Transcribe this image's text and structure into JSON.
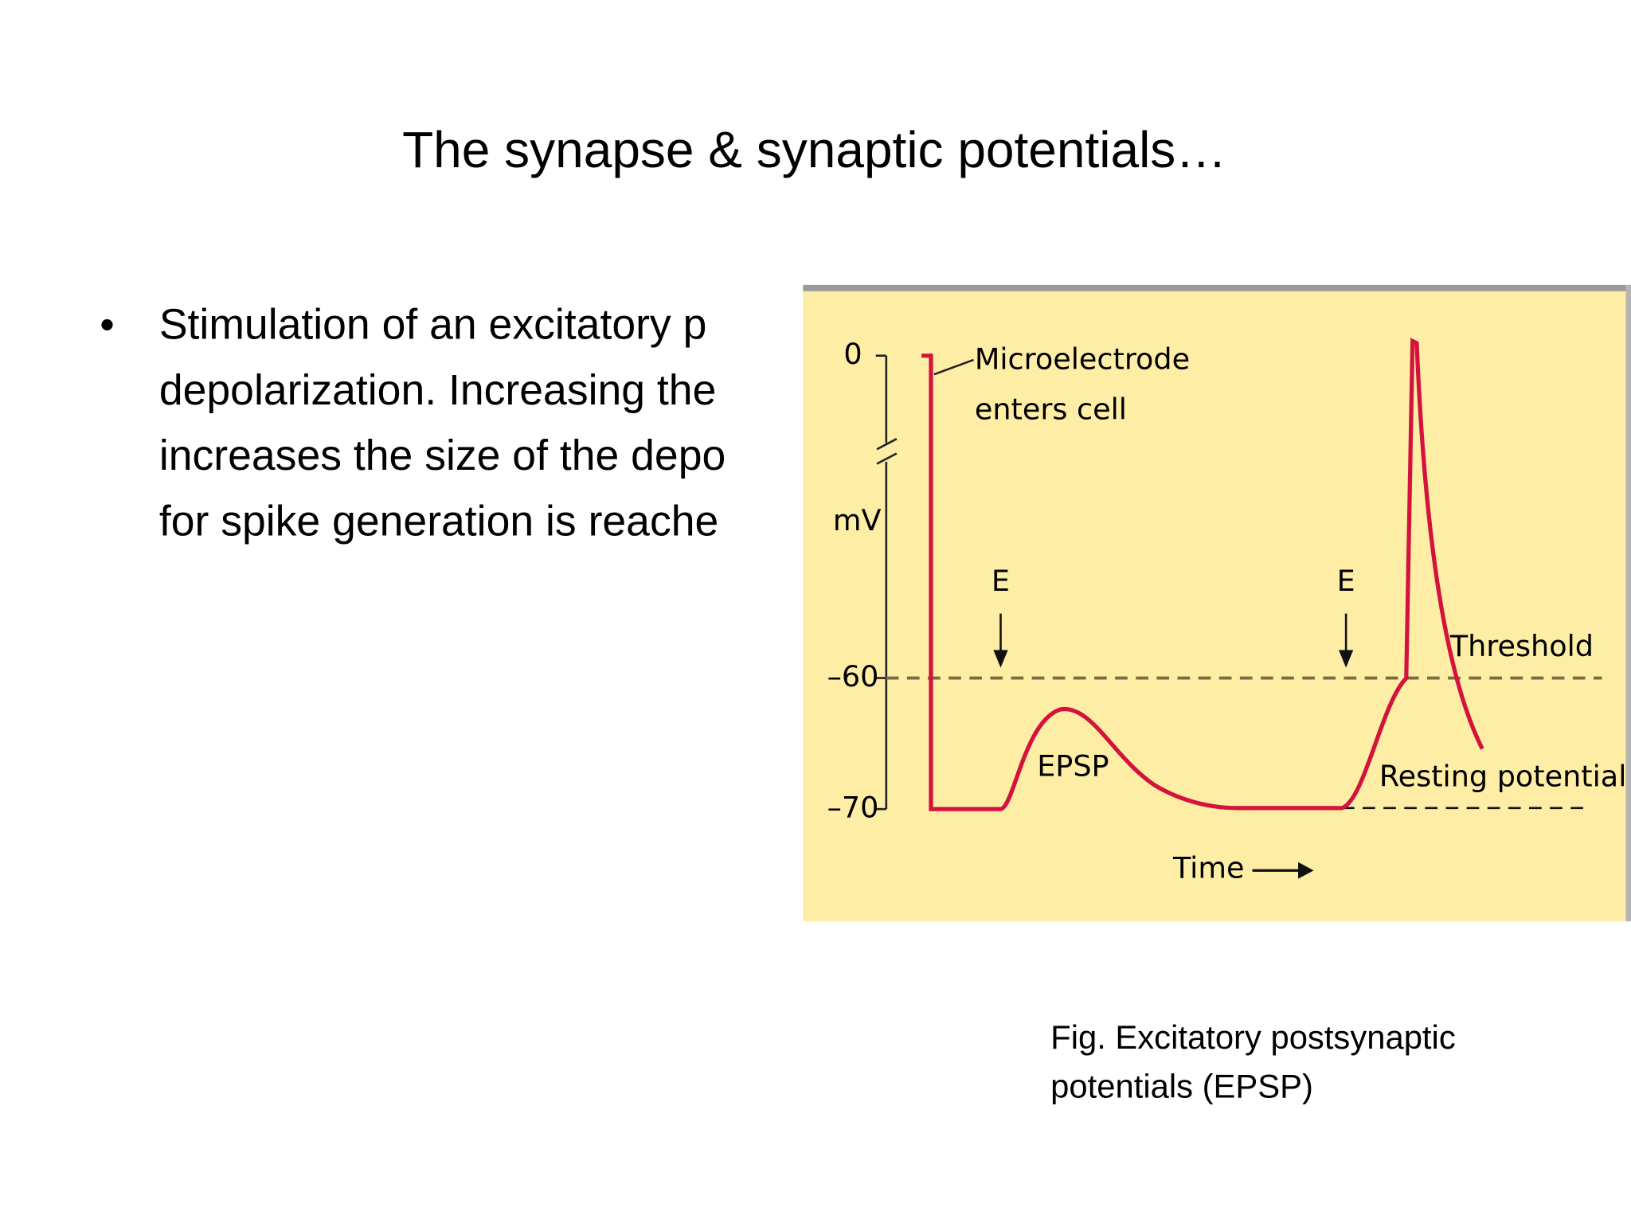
{
  "title": "The synapse & synaptic potentials…",
  "bullets": [
    {
      "lines": [
        "Stimulation of an excitatory p",
        "depolarization. Increasing the",
        "increases the size of the depo",
        "for spike generation is reache"
      ]
    }
  ],
  "figure": {
    "y_axis": {
      "label": "mV",
      "ticks": [
        "0",
        "–60",
        "–70"
      ]
    },
    "x_axis_label": "Time",
    "labels": {
      "microelectrode": [
        "Microelectrode",
        "enters cell"
      ],
      "stimulus_1": "E",
      "stimulus_2": "E",
      "threshold": "Threshold",
      "epsp": "EPSP",
      "resting": "Resting potential"
    }
  },
  "caption": {
    "lines": [
      "Fig. Excitatory postsynaptic",
      "potentials (EPSP)"
    ]
  }
}
